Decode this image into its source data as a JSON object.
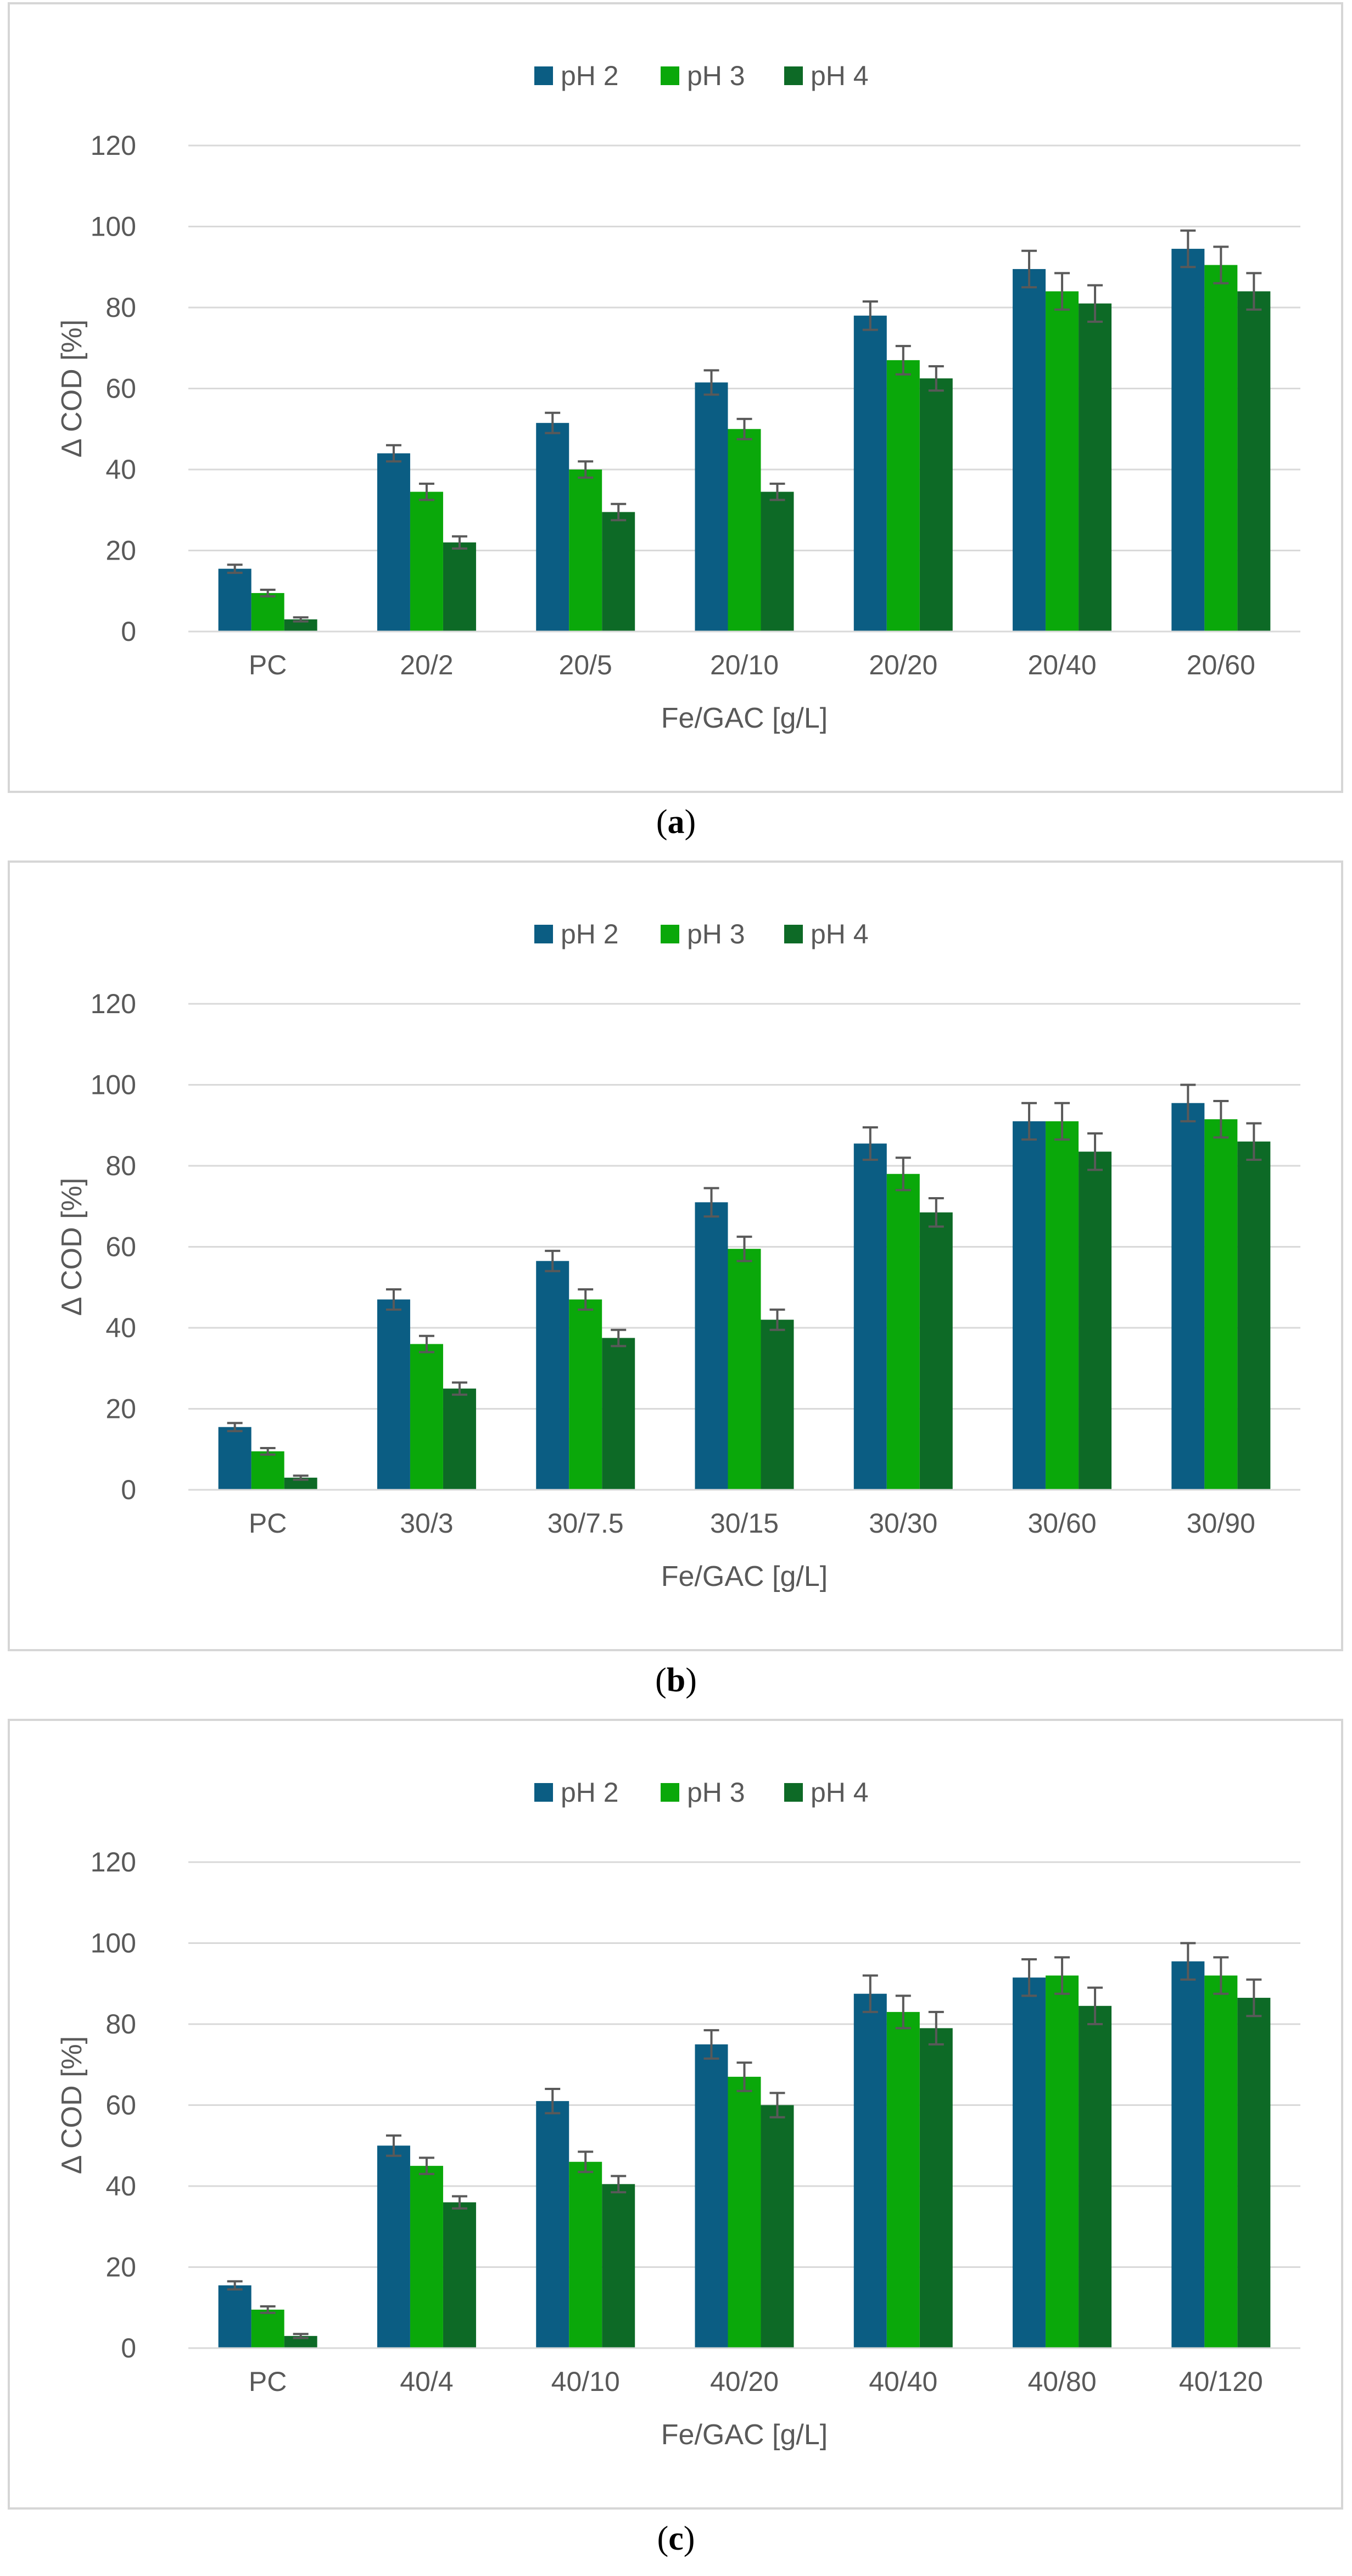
{
  "charts": [
    {
      "caption_letter": "a",
      "chart_data": {
        "type": "bar",
        "title": "",
        "xlabel": "Fe/GAC [g/L]",
        "ylabel": "Δ COD [%]",
        "ylim": [
          0,
          120
        ],
        "yticks": [
          0,
          20,
          40,
          60,
          80,
          100,
          120
        ],
        "grid": true,
        "legend": "top-center",
        "categories": [
          "PC",
          "20/2",
          "20/5",
          "20/10",
          "20/20",
          "20/40",
          "20/60"
        ],
        "series": [
          {
            "name": "pH 2",
            "color": "#0b5d83",
            "values": [
              15.5,
              44,
              51.5,
              61.5,
              78,
              89.5,
              94.5
            ],
            "errors": [
              1,
              2,
              2.5,
              3,
              3.5,
              4.5,
              4.5
            ]
          },
          {
            "name": "pH 3",
            "color": "#0aa80a",
            "values": [
              9.5,
              34.5,
              40,
              50,
              67,
              84,
              90.5
            ],
            "errors": [
              0.8,
              2,
              2,
              2.5,
              3.5,
              4.5,
              4.5
            ]
          },
          {
            "name": "pH 4",
            "color": "#0d6a26",
            "values": [
              3,
              22,
              29.5,
              34.5,
              62.5,
              81,
              84
            ],
            "errors": [
              0.5,
              1.5,
              2,
              2,
              3,
              4.5,
              4.5
            ]
          }
        ]
      }
    },
    {
      "caption_letter": "b",
      "chart_data": {
        "type": "bar",
        "title": "",
        "xlabel": "Fe/GAC [g/L]",
        "ylabel": "Δ COD [%]",
        "ylim": [
          0,
          120
        ],
        "yticks": [
          0,
          20,
          40,
          60,
          80,
          100,
          120
        ],
        "grid": true,
        "legend": "top-center",
        "categories": [
          "PC",
          "30/3",
          "30/7.5",
          "30/15",
          "30/30",
          "30/60",
          "30/90"
        ],
        "series": [
          {
            "name": "pH 2",
            "color": "#0b5d83",
            "values": [
              15.5,
              47,
              56.5,
              71,
              85.5,
              91,
              95.5
            ],
            "errors": [
              1,
              2.5,
              2.5,
              3.5,
              4,
              4.5,
              4.5
            ]
          },
          {
            "name": "pH 3",
            "color": "#0aa80a",
            "values": [
              9.5,
              36,
              47,
              59.5,
              78,
              91,
              91.5
            ],
            "errors": [
              0.8,
              2,
              2.5,
              3,
              4,
              4.5,
              4.5
            ]
          },
          {
            "name": "pH 4",
            "color": "#0d6a26",
            "values": [
              3,
              25,
              37.5,
              42,
              68.5,
              83.5,
              86
            ],
            "errors": [
              0.5,
              1.5,
              2,
              2.5,
              3.5,
              4.5,
              4.5
            ]
          }
        ]
      }
    },
    {
      "caption_letter": "c",
      "chart_data": {
        "type": "bar",
        "title": "",
        "xlabel": "Fe/GAC [g/L]",
        "ylabel": "Δ COD [%]",
        "ylim": [
          0,
          120
        ],
        "yticks": [
          0,
          20,
          40,
          60,
          80,
          100,
          120
        ],
        "grid": true,
        "legend": "top-center",
        "categories": [
          "PC",
          "40/4",
          "40/10",
          "40/20",
          "40/40",
          "40/80",
          "40/120"
        ],
        "series": [
          {
            "name": "pH 2",
            "color": "#0b5d83",
            "values": [
              15.5,
              50,
              61,
              75,
              87.5,
              91.5,
              95.5
            ],
            "errors": [
              1,
              2.5,
              3,
              3.5,
              4.5,
              4.5,
              4.5
            ]
          },
          {
            "name": "pH 3",
            "color": "#0aa80a",
            "values": [
              9.5,
              45,
              46,
              67,
              83,
              92,
              92
            ],
            "errors": [
              0.8,
              2,
              2.5,
              3.5,
              4,
              4.5,
              4.5
            ]
          },
          {
            "name": "pH 4",
            "color": "#0d6a26",
            "values": [
              3,
              36,
              40.5,
              60,
              79,
              84.5,
              86.5
            ],
            "errors": [
              0.5,
              1.5,
              2,
              3,
              4,
              4.5,
              4.5
            ]
          }
        ]
      }
    }
  ]
}
